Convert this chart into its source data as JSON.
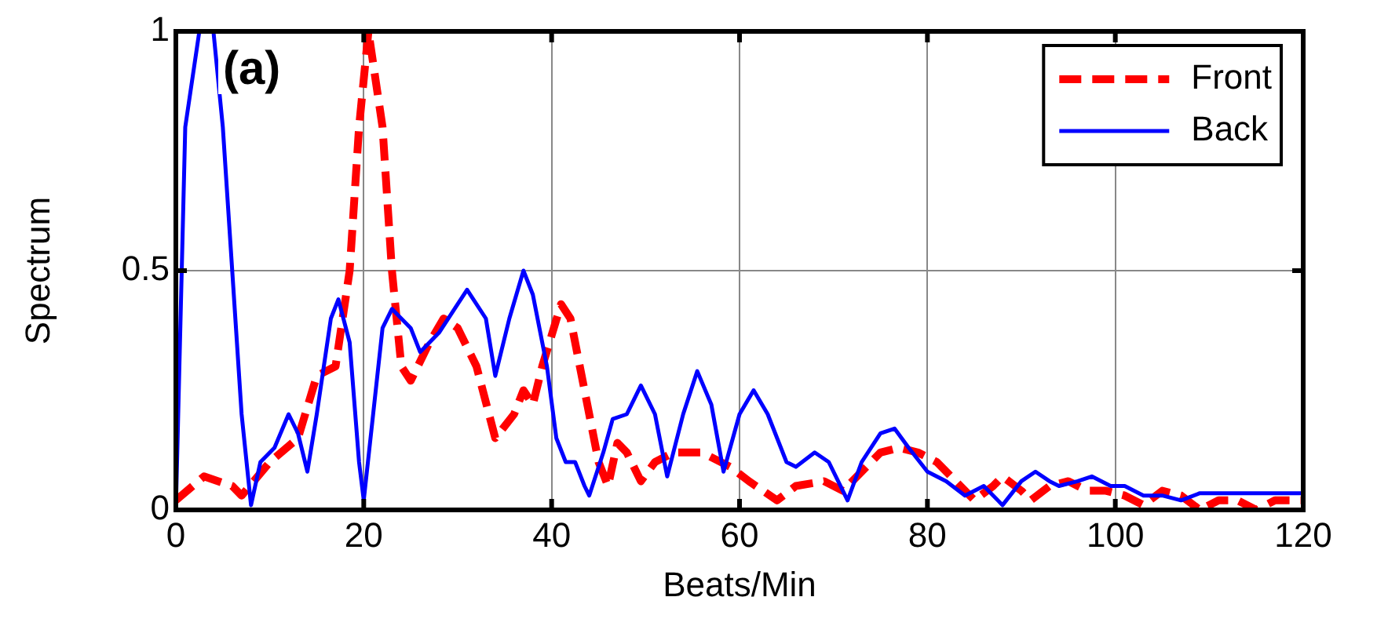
{
  "chart_data": {
    "type": "line",
    "xlabel": "Beats/Min",
    "ylabel": "Spectrum",
    "annotations": [
      "(a)"
    ],
    "xlim": [
      0,
      120
    ],
    "xticks": [
      0,
      20,
      40,
      60,
      80,
      100,
      120
    ],
    "ylim": [
      0,
      1
    ],
    "yticks": [
      0,
      0.5,
      1
    ],
    "grid": true,
    "legend": "top right",
    "marker": "none",
    "series": [
      {
        "name": "Front",
        "color": "#ff0000",
        "line_style": "dashed",
        "x": [
          0,
          3,
          6,
          7,
          10,
          13,
          15,
          17,
          18.5,
          19.5,
          20.5,
          22,
          23,
          24,
          25,
          27,
          28.5,
          30,
          32,
          34,
          36,
          37,
          38,
          39,
          41,
          42,
          44,
          45,
          46,
          47,
          48,
          49.5,
          51,
          53,
          56,
          59,
          61,
          64,
          66,
          69,
          71,
          73,
          75,
          77,
          79,
          81,
          83,
          85,
          87,
          88,
          90,
          91,
          93,
          95,
          97,
          99,
          101,
          103,
          105,
          107,
          109,
          111,
          113,
          115,
          117,
          120
        ],
        "values": [
          0.02,
          0.07,
          0.05,
          0.03,
          0.1,
          0.15,
          0.28,
          0.3,
          0.5,
          0.8,
          1.0,
          0.8,
          0.5,
          0.3,
          0.27,
          0.35,
          0.4,
          0.38,
          0.3,
          0.15,
          0.2,
          0.25,
          0.22,
          0.3,
          0.43,
          0.4,
          0.2,
          0.1,
          0.05,
          0.14,
          0.12,
          0.06,
          0.1,
          0.12,
          0.12,
          0.09,
          0.06,
          0.02,
          0.05,
          0.06,
          0.04,
          0.08,
          0.12,
          0.13,
          0.12,
          0.1,
          0.06,
          0.02,
          0.05,
          0.07,
          0.04,
          0.02,
          0.05,
          0.06,
          0.04,
          0.04,
          0.03,
          0.01,
          0.04,
          0.03,
          0.0,
          0.02,
          0.02,
          0.0,
          0.02,
          0.02
        ]
      },
      {
        "name": "Back",
        "color": "#0000ff",
        "line_style": "solid",
        "x": [
          0,
          1,
          2.5,
          4,
          5,
          6,
          7,
          8,
          9,
          10.5,
          12,
          13,
          14,
          15,
          16.5,
          17.3,
          18.5,
          19.5,
          20,
          21,
          22,
          23,
          25,
          26,
          28,
          30,
          31,
          33,
          34,
          35.5,
          37,
          38,
          39.5,
          40.5,
          41.5,
          42.5,
          43.5,
          44,
          45.5,
          46.5,
          48,
          49.5,
          51,
          52.3,
          54,
          55.5,
          57,
          58.3,
          60,
          61.5,
          63,
          65,
          66,
          68,
          69.5,
          71.5,
          73,
          75,
          76.5,
          78,
          80,
          82,
          84,
          86,
          88,
          90,
          91.5,
          93,
          94,
          96,
          97.5,
          99.5,
          101,
          103,
          105,
          107,
          109,
          113,
          120
        ],
        "values": [
          0,
          0.8,
          1.0,
          1.0,
          0.8,
          0.5,
          0.2,
          0.01,
          0.1,
          0.13,
          0.2,
          0.16,
          0.08,
          0.2,
          0.4,
          0.44,
          0.35,
          0.1,
          0.02,
          0.2,
          0.38,
          0.42,
          0.38,
          0.33,
          0.37,
          0.43,
          0.46,
          0.4,
          0.28,
          0.4,
          0.5,
          0.45,
          0.3,
          0.15,
          0.1,
          0.1,
          0.05,
          0.03,
          0.12,
          0.19,
          0.2,
          0.26,
          0.2,
          0.07,
          0.2,
          0.29,
          0.22,
          0.08,
          0.2,
          0.25,
          0.2,
          0.1,
          0.09,
          0.12,
          0.1,
          0.02,
          0.1,
          0.16,
          0.17,
          0.13,
          0.08,
          0.06,
          0.03,
          0.05,
          0.01,
          0.06,
          0.08,
          0.06,
          0.05,
          0.06,
          0.07,
          0.05,
          0.05,
          0.03,
          0.03,
          0.02,
          0.035,
          0.035,
          0.035
        ]
      }
    ]
  }
}
